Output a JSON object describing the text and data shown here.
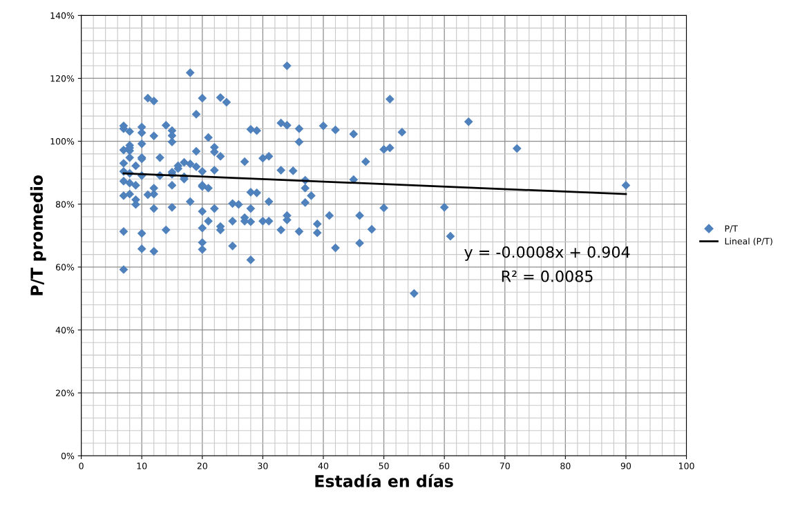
{
  "chart_data": {
    "type": "scatter",
    "xlabel": "Estadía en días",
    "ylabel": "P/T promedio",
    "xlim": [
      0,
      100
    ],
    "xticks": [
      0,
      10,
      20,
      30,
      40,
      50,
      60,
      70,
      80,
      90,
      100
    ],
    "ylim": [
      0,
      1.4
    ],
    "yticks": [
      {
        "value": 0,
        "label": "0%"
      },
      {
        "value": 0.2,
        "label": "20%"
      },
      {
        "value": 0.4,
        "label": "40%"
      },
      {
        "value": 0.6,
        "label": "60%"
      },
      {
        "value": 0.8,
        "label": "80%"
      },
      {
        "value": 1.0,
        "label": "100%"
      },
      {
        "value": 1.2,
        "label": "120%"
      },
      {
        "value": 1.4,
        "label": "140%"
      }
    ],
    "grid": true,
    "legend": "right",
    "series": [
      {
        "name": "P/T",
        "marker": "diamond",
        "color": "#4f81bd",
        "x": [
          7,
          7,
          7,
          7,
          7,
          7,
          7,
          7,
          7,
          8,
          8,
          8,
          8,
          8,
          8,
          8,
          8,
          9,
          9,
          9,
          9,
          10,
          10,
          10,
          10,
          10,
          10,
          10,
          10,
          11,
          11,
          12,
          12,
          12,
          12,
          12,
          12,
          13,
          13,
          14,
          14,
          15,
          15,
          15,
          15,
          15,
          15,
          15,
          16,
          16,
          17,
          17,
          17,
          18,
          18,
          18,
          19,
          19,
          19,
          20,
          20,
          20,
          20,
          20,
          20,
          20,
          20,
          21,
          21,
          21,
          22,
          22,
          22,
          22,
          23,
          23,
          23,
          23,
          24,
          25,
          25,
          25,
          26,
          27,
          27,
          27,
          28,
          28,
          28,
          28,
          28,
          29,
          29,
          30,
          30,
          31,
          31,
          31,
          33,
          33,
          33,
          34,
          34,
          34,
          34,
          35,
          36,
          36,
          36,
          37,
          37,
          37,
          38,
          39,
          39,
          40,
          41,
          42,
          42,
          45,
          45,
          46,
          46,
          47,
          48,
          50,
          50,
          51,
          51,
          53,
          55,
          60,
          61,
          64,
          72,
          90
        ],
        "values": [
          1.049,
          1.04,
          0.972,
          0.93,
          0.904,
          0.873,
          0.827,
          0.713,
          0.592,
          1.031,
          0.987,
          0.979,
          0.97,
          0.948,
          0.898,
          0.867,
          0.832,
          0.922,
          0.814,
          0.799,
          0.86,
          1.045,
          1.027,
          0.992,
          0.948,
          0.944,
          0.891,
          0.707,
          0.658,
          1.137,
          0.83,
          1.128,
          1.017,
          0.851,
          0.832,
          0.786,
          0.65,
          0.948,
          0.891,
          1.051,
          0.718,
          1.034,
          1.018,
          0.998,
          0.902,
          0.895,
          0.86,
          0.79,
          0.922,
          0.913,
          0.933,
          0.887,
          0.88,
          1.218,
          0.928,
          0.808,
          1.086,
          0.968,
          0.919,
          1.137,
          0.904,
          0.86,
          0.856,
          0.777,
          0.724,
          0.678,
          0.656,
          1.012,
          0.851,
          0.746,
          0.981,
          0.966,
          0.908,
          0.786,
          1.139,
          0.952,
          0.729,
          0.718,
          1.124,
          0.802,
          0.746,
          0.667,
          0.799,
          0.935,
          0.757,
          0.746,
          1.038,
          0.838,
          0.786,
          0.744,
          0.623,
          1.034,
          0.836,
          0.946,
          0.746,
          0.952,
          0.808,
          0.746,
          1.058,
          0.908,
          0.718,
          1.24,
          1.051,
          0.764,
          0.75,
          0.906,
          1.04,
          0.998,
          0.713,
          0.876,
          0.851,
          0.805,
          0.827,
          0.737,
          0.709,
          1.049,
          0.764,
          1.036,
          0.661,
          1.023,
          0.878,
          0.764,
          0.676,
          0.935,
          0.72,
          0.974,
          0.788,
          1.134,
          0.979,
          1.029,
          0.516,
          0.79,
          0.698,
          1.062,
          0.977,
          0.86
        ]
      },
      {
        "name": "Lineal (P/T)",
        "type": "line",
        "color": "#000000",
        "x": [
          7,
          90
        ],
        "values": [
          0.898,
          0.832
        ]
      }
    ],
    "annotations": [
      "y = -0.0008x + 0.904",
      "R² = 0.0085"
    ]
  }
}
